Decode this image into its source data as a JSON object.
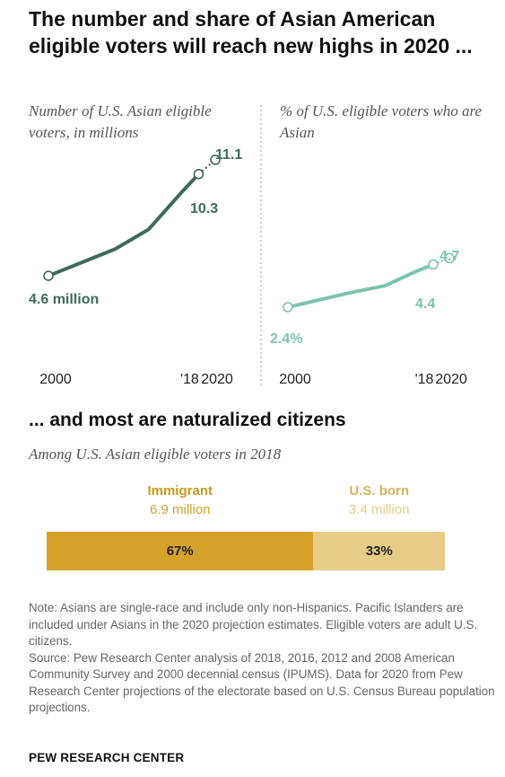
{
  "title": "The number and share of Asian American eligible voters will reach new highs in 2020 ...",
  "section_title": "... and most are naturalized citizens",
  "note": "Note: Asians are single-race and include only non-Hispanics. Pacific Islanders are included under Asians in the 2020 projection estimates. Eligible voters are adult U.S. citizens.",
  "source": "Source: Pew Research Center analysis of 2018, 2016, 2012 and 2008 American Community Survey and 2000 decennial census (IPUMS). Data for 2020 from Pew Research Center projections of the electorate based on U.S. Census Bureau population projections.",
  "brand": "PEW RESEARCH CENTER",
  "colors": {
    "dark_green": "#3d6b5a",
    "light_teal": "#7cc5b0",
    "immigrant": "#d4a22b",
    "us_born": "#e6cc84"
  },
  "chart_data": [
    {
      "type": "line",
      "title": "Number of U.S. Asian eligible voters, in millions",
      "x": [
        2000,
        2008,
        2012,
        2016,
        2018,
        2020
      ],
      "values": [
        4.6,
        6.1,
        7.2,
        9.3,
        10.3,
        11.1
      ],
      "projected_from": 2018,
      "x_tick_labels": [
        "2000",
        "'18",
        "2020"
      ],
      "data_labels": {
        "first": "4.6 million",
        "2018": "10.3",
        "2020": "11.1"
      },
      "ylim": [
        4,
        11.6
      ]
    },
    {
      "type": "line",
      "title": "% of U.S. eligible voters who are Asian",
      "x": [
        2000,
        2008,
        2012,
        2016,
        2018,
        2020
      ],
      "values": [
        2.4,
        3.1,
        3.4,
        4.1,
        4.4,
        4.7
      ],
      "projected_from": 2018,
      "x_tick_labels": [
        "2000",
        "'18",
        "2020"
      ],
      "data_labels": {
        "first": "2.4%",
        "2018": "4.4",
        "2020": "4.7"
      },
      "ylim": [
        0.5,
        11.5
      ]
    },
    {
      "type": "bar",
      "title": "Among U.S. Asian eligible voters in 2018",
      "categories": [
        "Immigrant",
        "U.S. born"
      ],
      "category_sublabels": [
        "6.9 million",
        "3.4 million"
      ],
      "values": [
        67,
        33
      ],
      "value_labels": [
        "67%",
        "33%"
      ]
    }
  ]
}
